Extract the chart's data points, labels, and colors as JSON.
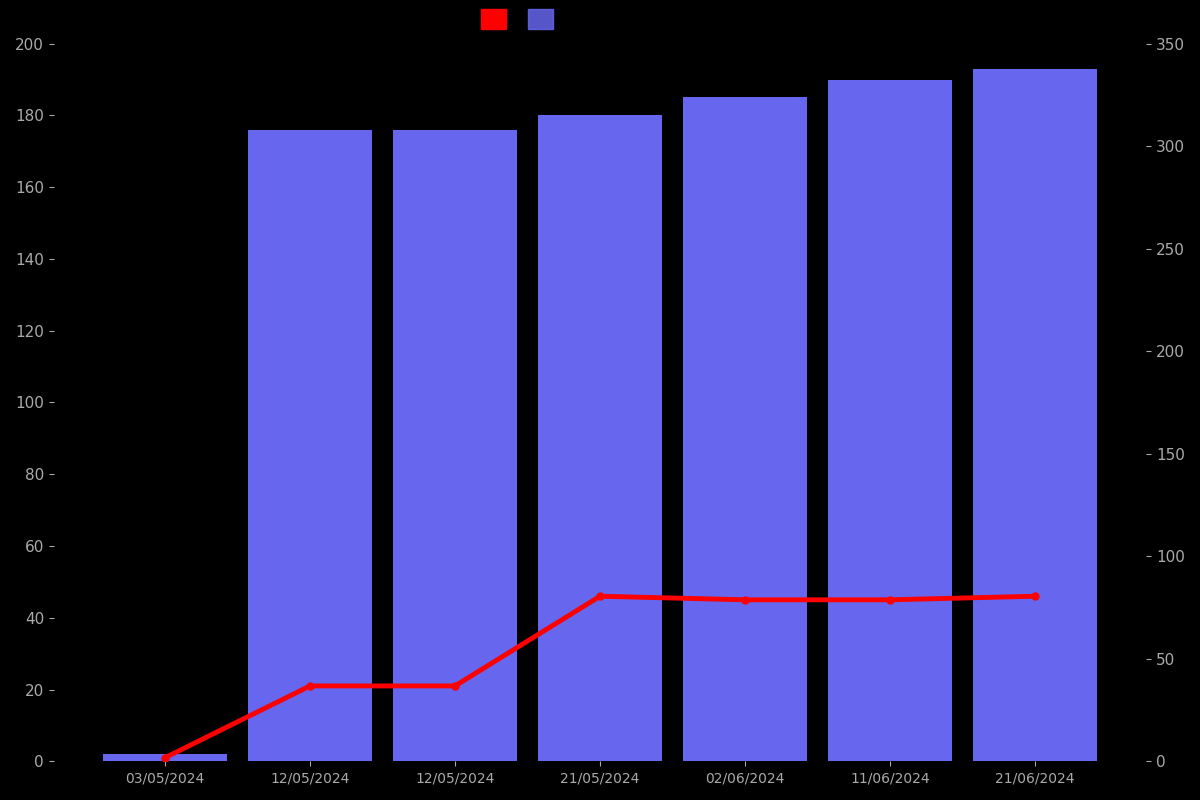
{
  "dates": [
    "03/05/2024",
    "12/05/2024",
    "12/05/2024",
    "21/05/2024",
    "02/06/2024",
    "11/06/2024",
    "21/06/2024"
  ],
  "bar_values": [
    2,
    176,
    176,
    180,
    185,
    190,
    193
  ],
  "line_values": [
    1,
    21,
    21,
    46,
    45,
    45,
    46
  ],
  "bar_color": "#6666ee",
  "line_color": "#ff0000",
  "background_color": "#000000",
  "text_color": "#aaaaaa",
  "left_ylim": [
    0,
    200
  ],
  "right_ylim": [
    0,
    350
  ],
  "left_yticks": [
    0,
    20,
    40,
    60,
    80,
    100,
    120,
    140,
    160,
    180,
    200
  ],
  "right_yticks": [
    0,
    50,
    100,
    150,
    200,
    250,
    300,
    350
  ],
  "bar_width": 0.85,
  "line_width": 3.5,
  "marker_size": 5
}
